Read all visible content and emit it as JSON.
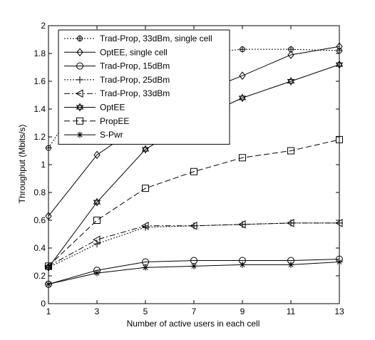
{
  "chart_data": {
    "type": "line",
    "xlabel": "Number of active users in each cell",
    "ylabel": "Throughput (Mbits/s)",
    "xlim": [
      1,
      13
    ],
    "ylim": [
      0,
      2
    ],
    "x": [
      1,
      3,
      5,
      7,
      9,
      11,
      13
    ],
    "xticks": [
      "1",
      "3",
      "5",
      "7",
      "9",
      "11",
      "13"
    ],
    "yticks": [
      "0",
      "0.2",
      "0.4",
      "0.6",
      "0.8",
      "1",
      "1.2",
      "1.4",
      "1.6",
      "1.8",
      "2"
    ],
    "grid": false,
    "legend_position": "top-left",
    "series": [
      {
        "name": "Trad-Prop, 33dBm, single cell",
        "marker": "crossed-circle",
        "dash": "dotted",
        "values": [
          1.12,
          1.65,
          1.73,
          1.8,
          1.83,
          1.83,
          1.82
        ]
      },
      {
        "name": "OptEE, single cell",
        "marker": "diamond",
        "dash": "solid",
        "values": [
          0.63,
          1.07,
          1.31,
          1.5,
          1.64,
          1.79,
          1.85
        ]
      },
      {
        "name": "Trad-Prop, 15dBm",
        "marker": "circle",
        "dash": "solid",
        "values": [
          0.14,
          0.24,
          0.3,
          0.31,
          0.31,
          0.31,
          0.32
        ]
      },
      {
        "name": "Trad-Prop, 25dBm",
        "marker": "plus",
        "dash": "dotted",
        "values": [
          0.26,
          0.43,
          0.55,
          0.56,
          0.57,
          0.58,
          0.58
        ]
      },
      {
        "name": "Trad-Prop, 33dBm",
        "marker": "triangle-left",
        "dash": "dashdot",
        "values": [
          0.27,
          0.46,
          0.56,
          0.56,
          0.57,
          0.58,
          0.58
        ]
      },
      {
        "name": "OptEE",
        "marker": "hexagram",
        "dash": "solid",
        "values": [
          0.26,
          0.73,
          1.11,
          1.32,
          1.48,
          1.6,
          1.72
        ]
      },
      {
        "name": "PropEE",
        "marker": "square",
        "dash": "dashed",
        "values": [
          0.27,
          0.6,
          0.83,
          0.95,
          1.05,
          1.1,
          1.18
        ]
      },
      {
        "name": "S-Pwr",
        "marker": "asterisk",
        "dash": "solid",
        "values": [
          0.14,
          0.22,
          0.26,
          0.27,
          0.28,
          0.28,
          0.3
        ]
      }
    ]
  }
}
